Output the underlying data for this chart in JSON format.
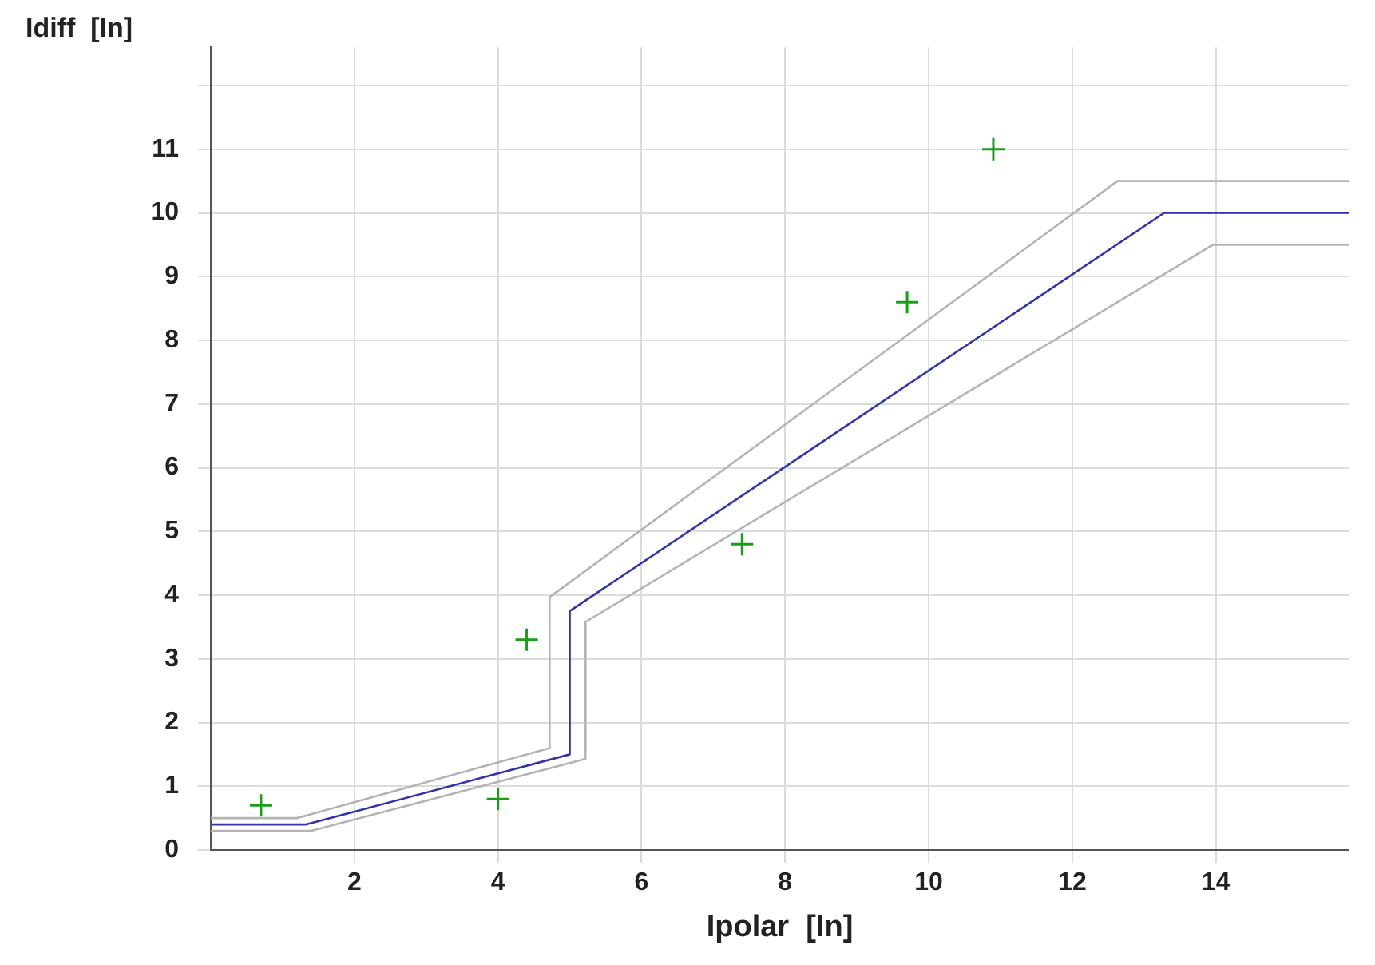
{
  "chart_data": {
    "type": "line",
    "xlabel": "Ipolar  [In]",
    "ylabel": "Idiff  [In]",
    "xlim": [
      0,
      15.85
    ],
    "ylim": [
      0,
      12.6
    ],
    "xticks": [
      2,
      4,
      6,
      8,
      10,
      12,
      14
    ],
    "yticks": [
      0,
      1,
      2,
      3,
      4,
      5,
      6,
      7,
      8,
      9,
      10,
      11,
      {
        "value": 12,
        "label": null
      }
    ],
    "grid": true,
    "legend": false,
    "line_style": "solid",
    "series": [
      {
        "color": "#b4b4b4",
        "x": [
          0,
          1.2,
          4.72,
          4.72,
          12.63,
          15.85
        ],
        "values": [
          0.5,
          0.5,
          1.6,
          3.97,
          10.5,
          10.5
        ]
      },
      {
        "color": "#b4b4b4",
        "x": [
          0,
          1.4,
          5.22,
          5.22,
          13.96,
          15.85
        ],
        "values": [
          0.3,
          0.3,
          1.43,
          3.58,
          9.5,
          9.5
        ]
      },
      {
        "color": "#3434a8",
        "x": [
          0,
          1.33,
          5,
          5,
          13.28,
          15.85
        ],
        "values": [
          0.4,
          0.4,
          1.5,
          3.75,
          10,
          10
        ]
      },
      {
        "type": "scatter",
        "color": "#1a9e1a",
        "marker": "cross",
        "x": [
          0.7,
          4,
          4.4,
          7.4,
          9.7,
          10.9
        ],
        "values": [
          0.7,
          0.8,
          3.3,
          4.8,
          8.6,
          11
        ]
      }
    ]
  }
}
